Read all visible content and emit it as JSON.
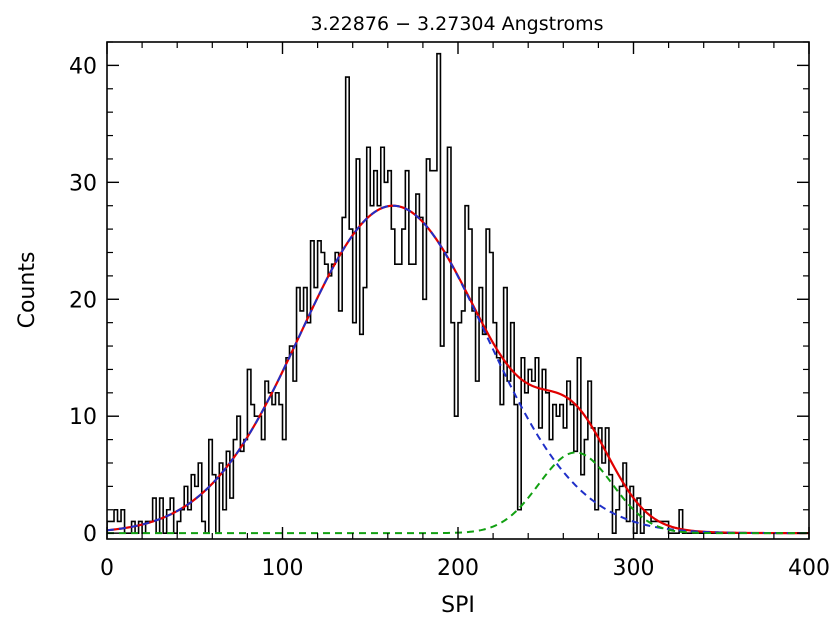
{
  "chart_data": {
    "type": "line",
    "title": "3.22876 − 3.27304 Angstroms",
    "xlabel": "SPI",
    "ylabel": "Counts",
    "xlim": [
      0,
      400
    ],
    "ylim": [
      -0.5,
      42
    ],
    "x_ticks": [
      0,
      100,
      200,
      300,
      400
    ],
    "x_tick_labels": [
      "0",
      "100",
      "200",
      "300",
      "400"
    ],
    "y_ticks": [
      0,
      10,
      20,
      30,
      40
    ],
    "y_tick_labels": [
      "0",
      "10",
      "20",
      "30",
      "40"
    ],
    "grid": false,
    "histogram": {
      "color": "#000000",
      "bin_width": 2,
      "model": {
        "gauss1": {
          "amp": 28,
          "center": 163,
          "sigma": 53
        },
        "gauss2": {
          "amp": 6.9,
          "center": 267,
          "sigma": 21
        }
      },
      "noise_seed": 7
    },
    "series": [
      {
        "style": "solid",
        "color": "#e00000",
        "component": "sum"
      },
      {
        "style": "dashed",
        "color": "#1f2fc8",
        "component": "gauss1"
      },
      {
        "style": "dashed",
        "color": "#12a012",
        "component": "gauss2"
      }
    ]
  }
}
